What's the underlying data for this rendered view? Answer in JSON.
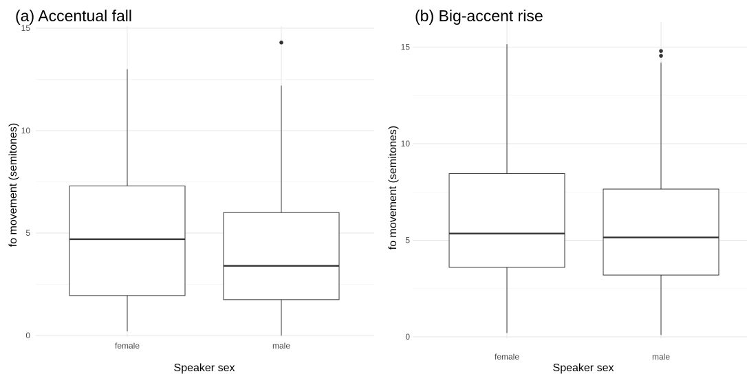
{
  "chart_data": [
    {
      "type": "box",
      "title": "(a) Accentual fall",
      "xlabel": "Speaker sex",
      "ylabel": "fo movement (semitones)",
      "categories": [
        "female",
        "male"
      ],
      "ylim": [
        0,
        15
      ],
      "yticks": [
        0,
        5,
        10,
        15
      ],
      "grid": true,
      "boxes": [
        {
          "category": "female",
          "whisker_low": 0.2,
          "q1": 1.95,
          "median": 4.7,
          "q3": 7.3,
          "whisker_high": 13.0,
          "outliers": []
        },
        {
          "category": "male",
          "whisker_low": 0.0,
          "q1": 1.75,
          "median": 3.4,
          "q3": 6.0,
          "whisker_high": 12.2,
          "outliers": [
            14.3
          ]
        }
      ]
    },
    {
      "type": "box",
      "title": "(b) Big-accent rise",
      "xlabel": "Speaker sex",
      "ylabel": "fo movement (semitones)",
      "categories": [
        "female",
        "male"
      ],
      "ylim": [
        0,
        15
      ],
      "yticks": [
        0,
        5,
        10,
        15
      ],
      "grid": true,
      "boxes": [
        {
          "category": "female",
          "whisker_low": 0.2,
          "q1": 3.6,
          "median": 5.35,
          "q3": 8.45,
          "whisker_high": 15.15,
          "outliers": []
        },
        {
          "category": "male",
          "whisker_low": 0.1,
          "q1": 3.2,
          "median": 5.15,
          "q3": 7.65,
          "whisker_high": 14.2,
          "outliers": [
            14.55,
            14.8
          ]
        }
      ]
    }
  ]
}
